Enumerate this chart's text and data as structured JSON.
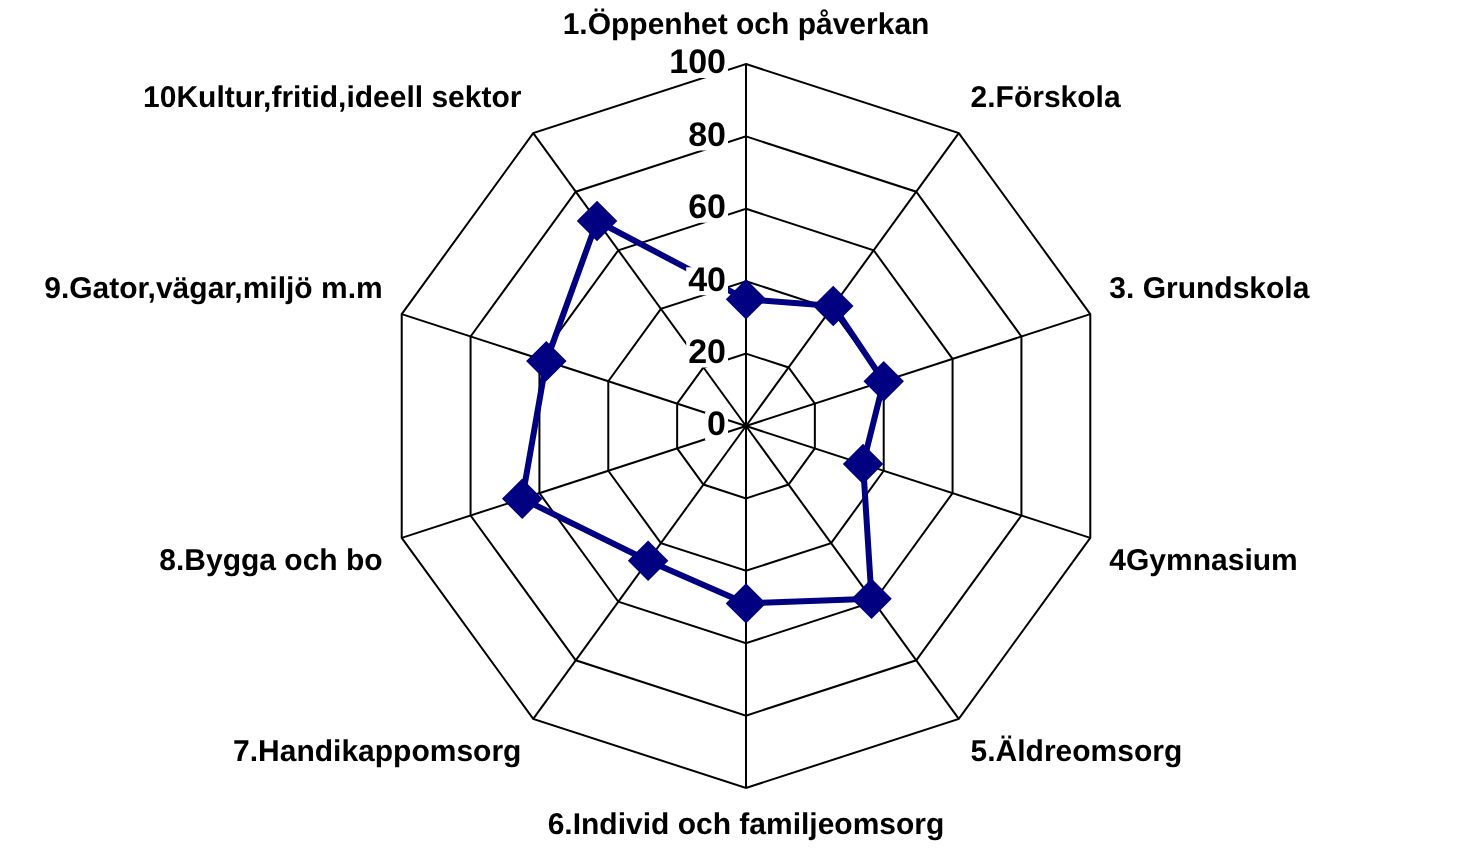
{
  "chart_data": {
    "type": "radar",
    "categories": [
      "1.Öppenhet och påverkan",
      "2.Förskola",
      "3. Grundskola",
      "4Gymnasium",
      "5.Äldreomsorg",
      "6.Individ och familjeomsorg",
      "7.Handikappomsorg",
      "8.Bygga och bo",
      "9.Gator,vägar,miljö m.m",
      "10Kultur,fritid,ideell sektor"
    ],
    "series": [
      {
        "color": "#000080",
        "values": [
          35,
          41,
          40,
          34,
          59,
          49,
          46,
          65,
          58,
          70
        ]
      }
    ],
    "ylim": [
      0,
      100
    ],
    "yticks": [
      0,
      20,
      40,
      60,
      80,
      100
    ],
    "grid": true,
    "legend": false,
    "marker": "diamond",
    "line_style": "solid"
  }
}
